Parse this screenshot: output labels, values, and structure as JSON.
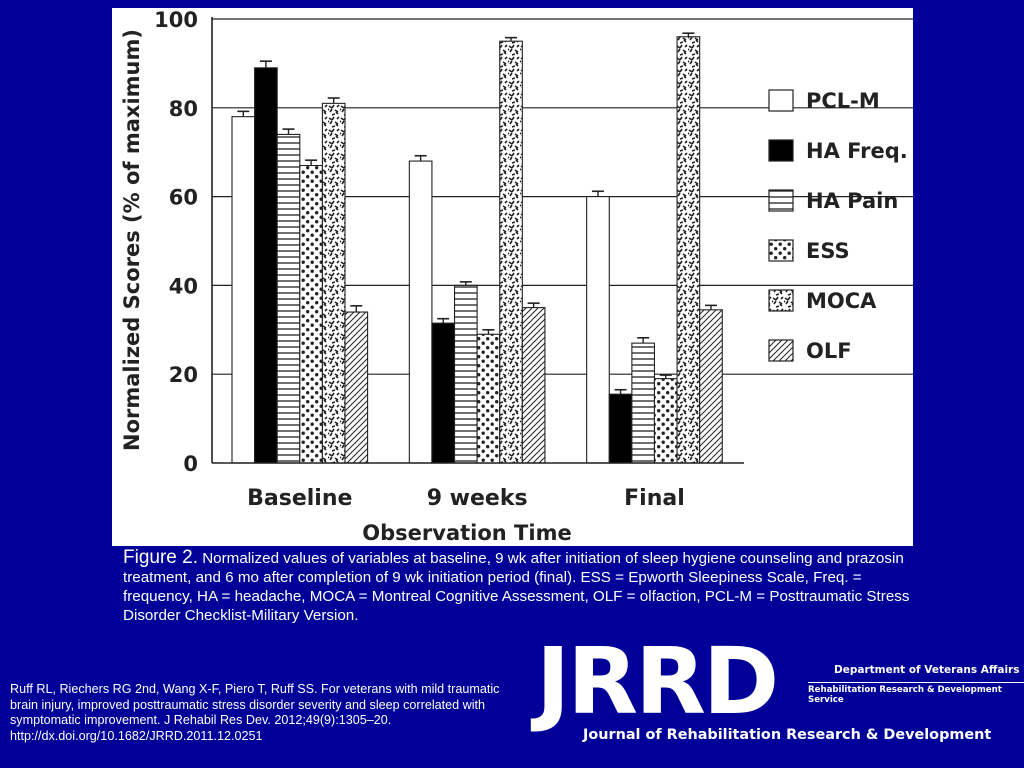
{
  "chart_data": {
    "type": "bar",
    "xlabel": "Observation Time",
    "ylabel": "Normalized Scores (% of maximum)",
    "ylim": [
      0,
      100
    ],
    "yticks": [
      0,
      20,
      40,
      60,
      80,
      100
    ],
    "grid": true,
    "legend_position": "right",
    "categories": [
      "Baseline",
      "9 weeks",
      "Final"
    ],
    "series": [
      {
        "name": "PCL-M",
        "pattern": "open",
        "values": [
          78,
          68,
          60
        ],
        "errors": [
          1.2,
          1.2,
          1.2
        ]
      },
      {
        "name": "HA Freq.",
        "pattern": "solid",
        "values": [
          89,
          31.5,
          15.5
        ],
        "errors": [
          1.5,
          1,
          1
        ]
      },
      {
        "name": "HA Pain",
        "pattern": "horizontal-lines",
        "values": [
          74,
          40,
          27
        ],
        "errors": [
          1.2,
          0.8,
          1.2
        ]
      },
      {
        "name": "ESS",
        "pattern": "dots",
        "values": [
          67,
          29,
          19
        ],
        "errors": [
          1.2,
          1,
          0.8
        ]
      },
      {
        "name": "MOCA",
        "pattern": "speckle",
        "values": [
          81,
          95,
          96
        ],
        "errors": [
          1.2,
          0.8,
          0.8
        ]
      },
      {
        "name": "OLF",
        "pattern": "diagonal-lines",
        "values": [
          34,
          35,
          34.5
        ],
        "errors": [
          1.4,
          1,
          1
        ]
      }
    ]
  },
  "caption": {
    "head": "Figure 2.",
    "body": " Normalized values of variables at baseline, 9 wk after initiation of sleep hygiene counseling and prazosin treatment, and 6 mo after completion of 9 wk initiation period (final). ESS = Epworth Sleepiness Scale, Freq. = frequency, HA = headache, MOCA = Montreal Cognitive Assessment, OLF = olfaction, PCL-M = Posttraumatic Stress Disorder Checklist-Military Version."
  },
  "citation": "Ruff RL, Riechers RG 2nd, Wang X-F, Piero T, Ruff SS. For veterans with mild traumatic brain injury, improved posttraumatic stress disorder severity and sleep correlated with symptomatic improvement. J Rehabil Res Dev. 2012;49(9):1305–20. http://dx.doi.org/10.1682/JRRD.2011.12.0251",
  "logo": {
    "word": "JRRD",
    "department": "Department of Veterans Affairs",
    "service": "Rehabilitation Research & Development Service",
    "journal": "Journal of Rehabilitation Research & Development"
  },
  "colors": {
    "background": "#000099",
    "panel": "#ffffff",
    "ink": "#222222"
  }
}
